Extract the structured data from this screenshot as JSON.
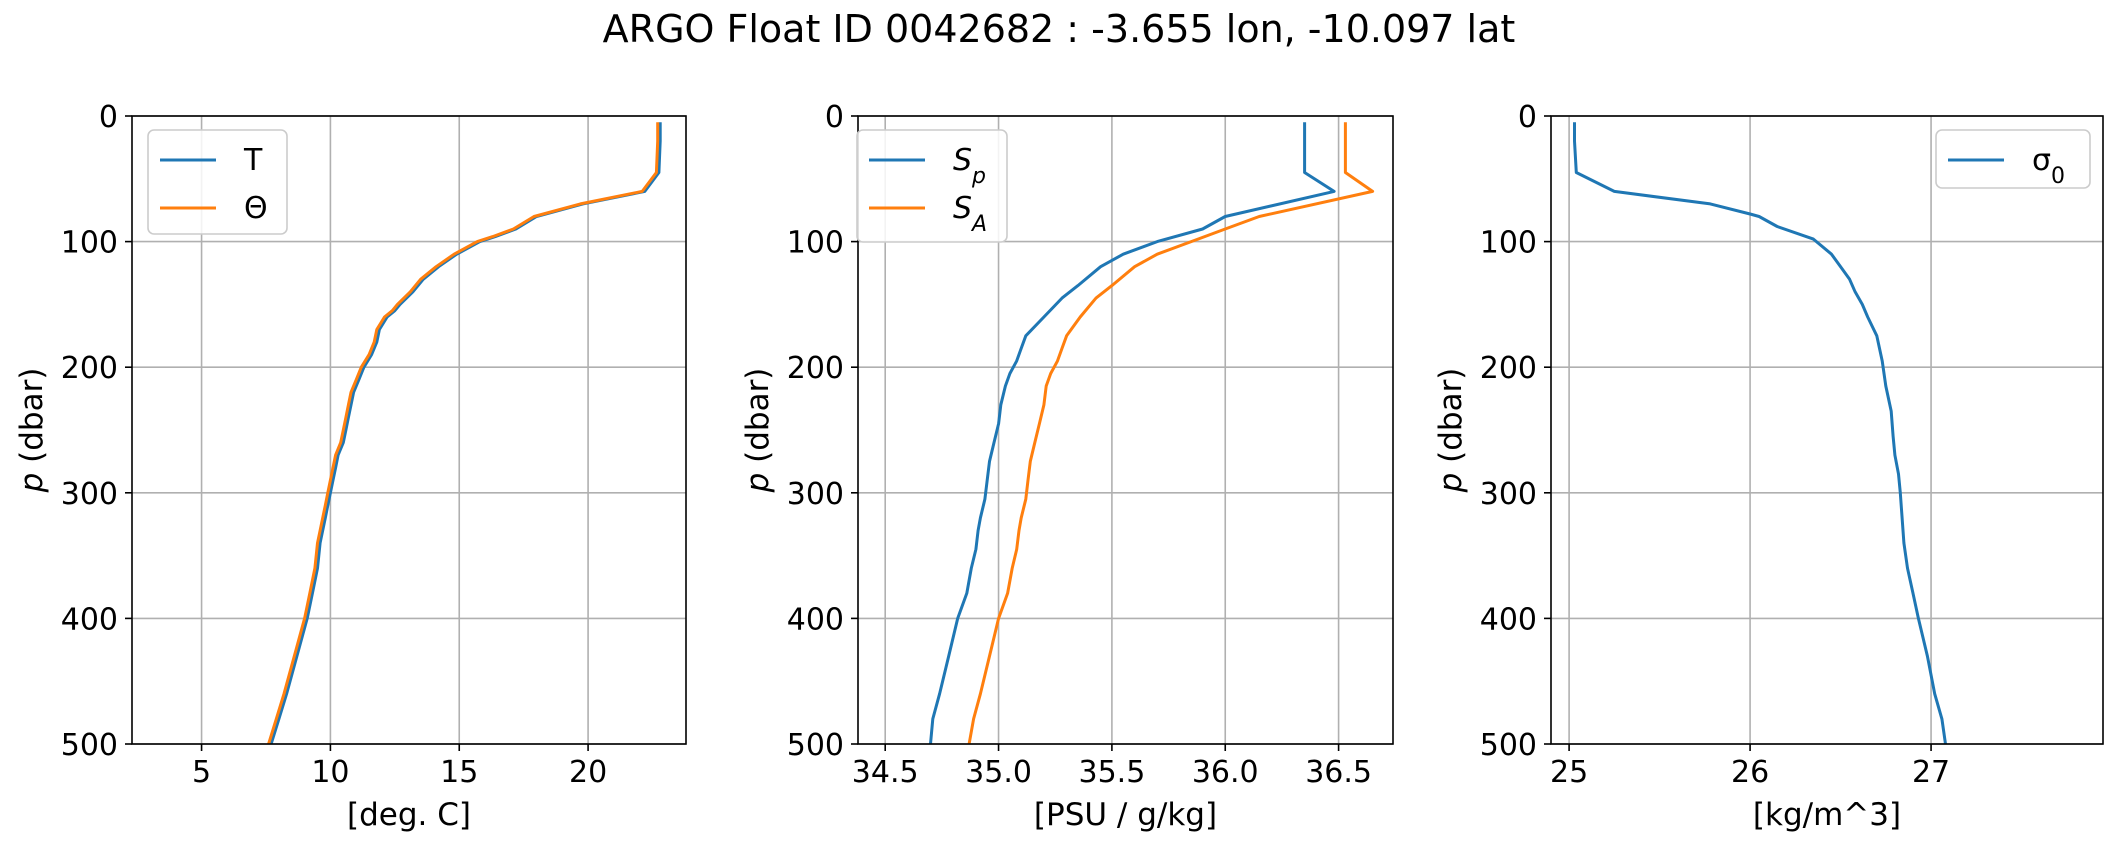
{
  "title": "ARGO Float ID 0042682 : -3.655 lon, -10.097 lat",
  "colors": {
    "blue": "#1f77b4",
    "orange": "#ff7f0e",
    "grid": "#b0b0b0"
  },
  "chart_data": [
    {
      "type": "line",
      "xlabel": "[deg. C]",
      "ylabel": "p (dbar)",
      "xlim": [
        2.3,
        23.8
      ],
      "ylim": [
        500,
        0
      ],
      "xticks": [
        5,
        10,
        15,
        20
      ],
      "yticks": [
        0,
        100,
        200,
        300,
        400,
        500
      ],
      "grid": true,
      "legend_position": "upper-left",
      "series": [
        {
          "name": "T",
          "color": "#1f77b4",
          "points": [
            [
              22.8,
              5
            ],
            [
              22.8,
              20
            ],
            [
              22.75,
              45
            ],
            [
              22.2,
              60
            ],
            [
              19.8,
              70
            ],
            [
              18.0,
              80
            ],
            [
              17.2,
              90
            ],
            [
              16.4,
              96
            ],
            [
              15.8,
              100
            ],
            [
              14.9,
              110
            ],
            [
              14.2,
              120
            ],
            [
              13.6,
              130
            ],
            [
              13.2,
              140
            ],
            [
              12.7,
              150
            ],
            [
              12.5,
              155
            ],
            [
              12.2,
              160
            ],
            [
              11.9,
              170
            ],
            [
              11.8,
              180
            ],
            [
              11.6,
              190
            ],
            [
              11.3,
              200
            ],
            [
              11.1,
              210
            ],
            [
              10.9,
              220
            ],
            [
              10.8,
              230
            ],
            [
              10.7,
              240
            ],
            [
              10.6,
              250
            ],
            [
              10.5,
              260
            ],
            [
              10.3,
              270
            ],
            [
              10.2,
              280
            ],
            [
              10.1,
              290
            ],
            [
              10.0,
              300
            ],
            [
              9.9,
              310
            ],
            [
              9.8,
              320
            ],
            [
              9.7,
              330
            ],
            [
              9.6,
              340
            ],
            [
              9.5,
              360
            ],
            [
              9.3,
              380
            ],
            [
              9.1,
              400
            ],
            [
              8.7,
              430
            ],
            [
              8.3,
              460
            ],
            [
              8.0,
              480
            ],
            [
              7.7,
              500
            ]
          ]
        },
        {
          "name": "Θ",
          "color": "#ff7f0e",
          "points": [
            [
              22.7,
              5
            ],
            [
              22.7,
              20
            ],
            [
              22.65,
              45
            ],
            [
              22.1,
              60
            ],
            [
              19.7,
              70
            ],
            [
              17.9,
              80
            ],
            [
              17.1,
              90
            ],
            [
              16.3,
              96
            ],
            [
              15.7,
              100
            ],
            [
              14.8,
              110
            ],
            [
              14.1,
              120
            ],
            [
              13.5,
              130
            ],
            [
              13.1,
              140
            ],
            [
              12.6,
              150
            ],
            [
              12.4,
              155
            ],
            [
              12.1,
              160
            ],
            [
              11.8,
              170
            ],
            [
              11.7,
              180
            ],
            [
              11.5,
              190
            ],
            [
              11.2,
              200
            ],
            [
              11.0,
              210
            ],
            [
              10.8,
              220
            ],
            [
              10.7,
              230
            ],
            [
              10.6,
              240
            ],
            [
              10.5,
              250
            ],
            [
              10.4,
              260
            ],
            [
              10.2,
              270
            ],
            [
              10.1,
              280
            ],
            [
              10.0,
              290
            ],
            [
              9.9,
              300
            ],
            [
              9.8,
              310
            ],
            [
              9.7,
              320
            ],
            [
              9.6,
              330
            ],
            [
              9.5,
              340
            ],
            [
              9.4,
              360
            ],
            [
              9.2,
              380
            ],
            [
              9.0,
              400
            ],
            [
              8.6,
              430
            ],
            [
              8.2,
              460
            ],
            [
              7.9,
              480
            ],
            [
              7.6,
              500
            ]
          ]
        }
      ]
    },
    {
      "type": "line",
      "xlabel": "[PSU / g/kg]",
      "ylabel": "p (dbar)",
      "xlim": [
        34.38,
        36.74
      ],
      "ylim": [
        500,
        0
      ],
      "xticks": [
        34.5,
        35.0,
        35.5,
        36.0,
        36.5
      ],
      "xtick_labels": [
        "34.5",
        "35.0",
        "35.5",
        "36.0",
        "36.5"
      ],
      "yticks": [
        0,
        100,
        200,
        300,
        400,
        500
      ],
      "grid": true,
      "legend_position": "upper-left",
      "series": [
        {
          "name": "S_p",
          "color": "#1f77b4",
          "points": [
            [
              36.35,
              5
            ],
            [
              36.35,
              20
            ],
            [
              36.35,
              45
            ],
            [
              36.48,
              60
            ],
            [
              36.0,
              80
            ],
            [
              35.9,
              90
            ],
            [
              35.7,
              100
            ],
            [
              35.55,
              110
            ],
            [
              35.45,
              120
            ],
            [
              35.35,
              135
            ],
            [
              35.28,
              145
            ],
            [
              35.2,
              160
            ],
            [
              35.12,
              175
            ],
            [
              35.1,
              185
            ],
            [
              35.08,
              195
            ],
            [
              35.05,
              205
            ],
            [
              35.03,
              215
            ],
            [
              35.01,
              230
            ],
            [
              35.0,
              245
            ],
            [
              34.98,
              260
            ],
            [
              34.96,
              275
            ],
            [
              34.95,
              290
            ],
            [
              34.94,
              305
            ],
            [
              34.92,
              320
            ],
            [
              34.91,
              330
            ],
            [
              34.9,
              345
            ],
            [
              34.88,
              360
            ],
            [
              34.86,
              380
            ],
            [
              34.82,
              400
            ],
            [
              34.78,
              430
            ],
            [
              34.74,
              460
            ],
            [
              34.71,
              480
            ],
            [
              34.7,
              500
            ]
          ]
        },
        {
          "name": "S_A",
          "color": "#ff7f0e",
          "points": [
            [
              36.53,
              5
            ],
            [
              36.53,
              20
            ],
            [
              36.53,
              45
            ],
            [
              36.65,
              60
            ],
            [
              36.15,
              80
            ],
            [
              36.0,
              90
            ],
            [
              35.85,
              100
            ],
            [
              35.7,
              110
            ],
            [
              35.6,
              120
            ],
            [
              35.5,
              135
            ],
            [
              35.43,
              145
            ],
            [
              35.36,
              160
            ],
            [
              35.3,
              175
            ],
            [
              35.28,
              185
            ],
            [
              35.26,
              195
            ],
            [
              35.23,
              205
            ],
            [
              35.21,
              215
            ],
            [
              35.2,
              230
            ],
            [
              35.18,
              245
            ],
            [
              35.16,
              260
            ],
            [
              35.14,
              275
            ],
            [
              35.13,
              290
            ],
            [
              35.12,
              305
            ],
            [
              35.1,
              320
            ],
            [
              35.09,
              330
            ],
            [
              35.08,
              345
            ],
            [
              35.06,
              360
            ],
            [
              35.04,
              380
            ],
            [
              35.0,
              400
            ],
            [
              34.96,
              430
            ],
            [
              34.92,
              460
            ],
            [
              34.89,
              480
            ],
            [
              34.87,
              500
            ]
          ]
        }
      ]
    },
    {
      "type": "line",
      "xlabel": "[kg/m^3]",
      "ylabel": "p (dbar)",
      "xlim": [
        24.9,
        27.95
      ],
      "ylim": [
        500,
        0
      ],
      "xticks": [
        25,
        26,
        27
      ],
      "yticks": [
        0,
        100,
        200,
        300,
        400,
        500
      ],
      "grid": true,
      "legend_position": "upper-right",
      "series": [
        {
          "name": "σ_0",
          "color": "#1f77b4",
          "points": [
            [
              25.03,
              5
            ],
            [
              25.03,
              20
            ],
            [
              25.04,
              45
            ],
            [
              25.25,
              60
            ],
            [
              25.78,
              70
            ],
            [
              26.0,
              78
            ],
            [
              26.05,
              80
            ],
            [
              26.15,
              88
            ],
            [
              26.35,
              98
            ],
            [
              26.45,
              110
            ],
            [
              26.5,
              120
            ],
            [
              26.55,
              130
            ],
            [
              26.58,
              140
            ],
            [
              26.62,
              150
            ],
            [
              26.65,
              160
            ],
            [
              26.7,
              175
            ],
            [
              26.73,
              195
            ],
            [
              26.75,
              215
            ],
            [
              26.78,
              235
            ],
            [
              26.79,
              255
            ],
            [
              26.8,
              270
            ],
            [
              26.82,
              285
            ],
            [
              26.83,
              300
            ],
            [
              26.84,
              320
            ],
            [
              26.85,
              340
            ],
            [
              26.87,
              360
            ],
            [
              26.9,
              380
            ],
            [
              26.93,
              400
            ],
            [
              26.98,
              430
            ],
            [
              27.02,
              460
            ],
            [
              27.06,
              480
            ],
            [
              27.08,
              500
            ]
          ]
        }
      ]
    }
  ]
}
